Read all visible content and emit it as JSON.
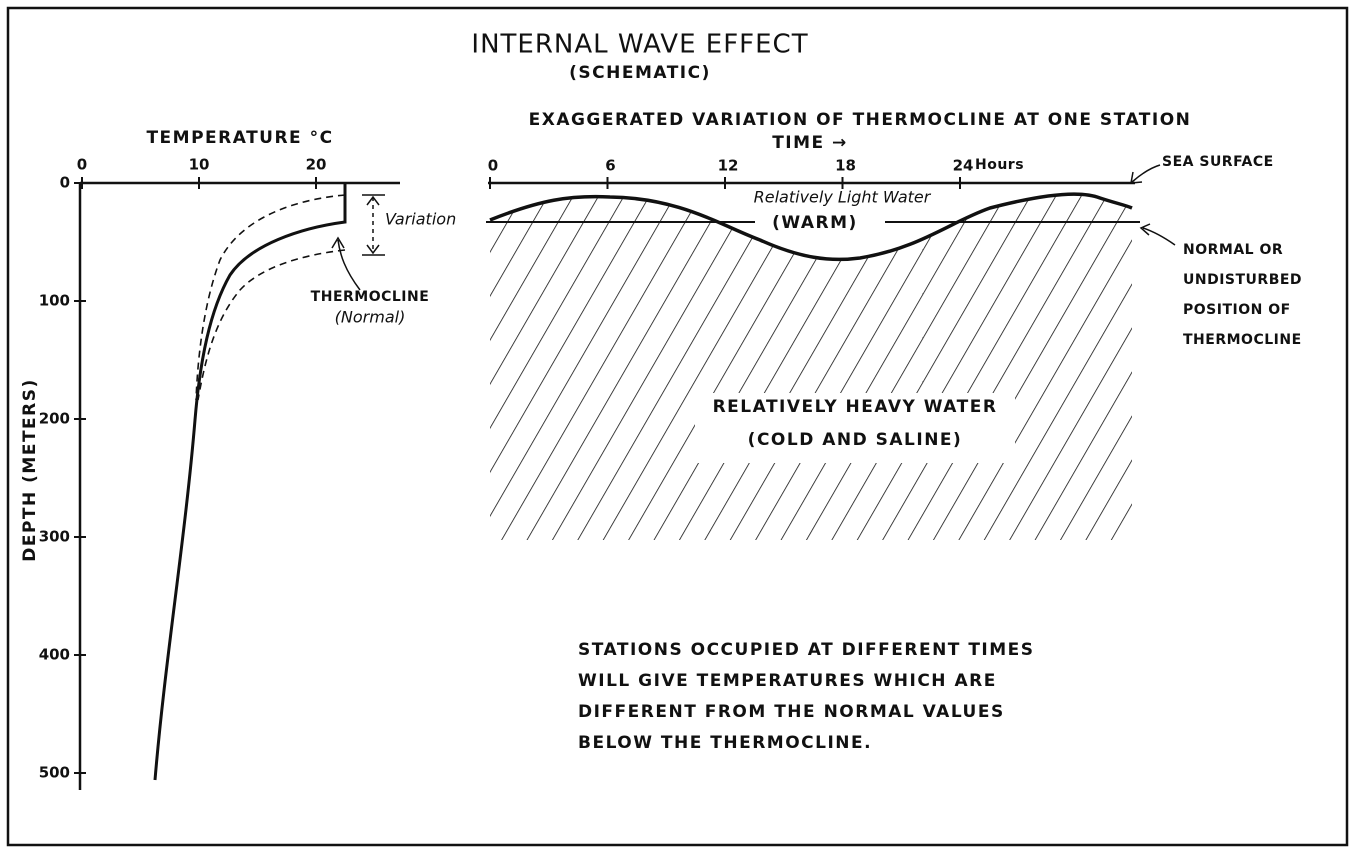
{
  "title": "INTERNAL WAVE EFFECT",
  "subtitle": "(SCHEMATIC)",
  "left_panel": {
    "x_label": "TEMPERATURE °C",
    "y_label": "DEPTH (METERS)",
    "x_ticks": [
      "0",
      "10",
      "20"
    ],
    "y_ticks": [
      "0",
      "100",
      "200",
      "300",
      "400",
      "500"
    ],
    "variation": "Variation",
    "thermocline": "THERMOCLINE",
    "thermocline_note": "(Normal)"
  },
  "right_panel": {
    "title": "EXAGGERATED VARIATION OF THERMOCLINE AT ONE STATION",
    "time_label": "TIME →",
    "x_ticks": [
      "0",
      "6",
      "12",
      "18",
      "24"
    ],
    "hours": "Hours",
    "sea_surface": "SEA SURFACE",
    "light_water": "Relatively Light Water",
    "warm": "(WARM)",
    "heavy_water": "RELATIVELY HEAVY WATER",
    "cold": "(COLD AND SALINE)",
    "normal_note": [
      "NORMAL OR",
      "UNDISTURBED",
      "POSITION OF",
      "THERMOCLINE"
    ]
  },
  "note": [
    "STATIONS OCCUPIED AT DIFFERENT TIMES",
    "WILL GIVE TEMPERATURES WHICH ARE",
    "DIFFERENT FROM THE NORMAL VALUES",
    "BELOW THE THERMOCLINE."
  ]
}
